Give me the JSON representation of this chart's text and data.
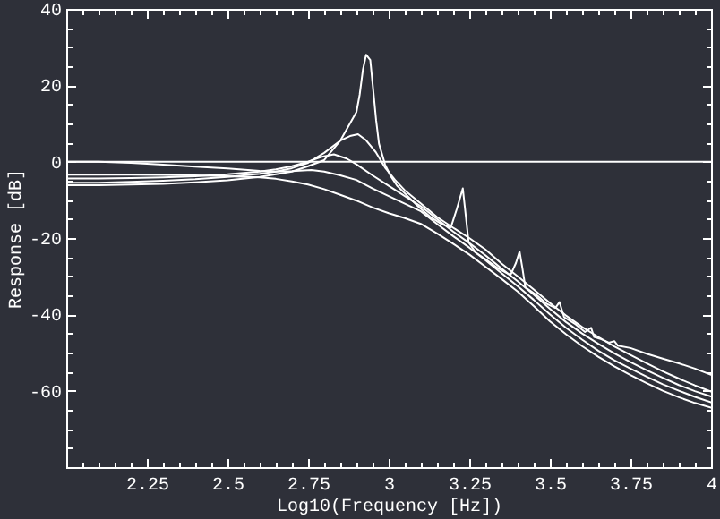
{
  "chart_data": {
    "type": "line",
    "xlabel": "Log10(Frequency [Hz])",
    "ylabel": "Response [dB]",
    "xlim": [
      2,
      4
    ],
    "ylim": [
      -80,
      40
    ],
    "xticks": [
      {
        "value": 2,
        "label": null
      },
      {
        "value": 2.05,
        "label": null
      },
      {
        "value": 2.1,
        "label": null
      },
      {
        "value": 2.15,
        "label": null
      },
      {
        "value": 2.2,
        "label": null
      },
      2.25,
      {
        "value": 2.3,
        "label": null
      },
      {
        "value": 2.35,
        "label": null
      },
      {
        "value": 2.4,
        "label": null
      },
      {
        "value": 2.45,
        "label": null
      },
      2.5,
      {
        "value": 2.55,
        "label": null
      },
      {
        "value": 2.6,
        "label": null
      },
      {
        "value": 2.65,
        "label": null
      },
      {
        "value": 2.7,
        "label": null
      },
      2.75,
      {
        "value": 2.8,
        "label": null
      },
      {
        "value": 2.85,
        "label": null
      },
      {
        "value": 2.9,
        "label": null
      },
      {
        "value": 2.95,
        "label": null
      },
      3,
      {
        "value": 3.05,
        "label": null
      },
      {
        "value": 3.1,
        "label": null
      },
      {
        "value": 3.15,
        "label": null
      },
      {
        "value": 3.2,
        "label": null
      },
      3.25,
      {
        "value": 3.3,
        "label": null
      },
      {
        "value": 3.35,
        "label": null
      },
      {
        "value": 3.4,
        "label": null
      },
      {
        "value": 3.45,
        "label": null
      },
      3.5,
      {
        "value": 3.55,
        "label": null
      },
      {
        "value": 3.6,
        "label": null
      },
      {
        "value": 3.65,
        "label": null
      },
      {
        "value": 3.7,
        "label": null
      },
      3.75,
      {
        "value": 3.8,
        "label": null
      },
      {
        "value": 3.85,
        "label": null
      },
      {
        "value": 3.9,
        "label": null
      },
      {
        "value": 3.95,
        "label": null
      },
      4
    ],
    "yticks": [
      {
        "value": -80,
        "label": null
      },
      {
        "value": -75,
        "label": null
      },
      {
        "value": -70,
        "label": null
      },
      {
        "value": -65,
        "label": null
      },
      -60,
      {
        "value": -55,
        "label": null
      },
      {
        "value": -50,
        "label": null
      },
      {
        "value": -45,
        "label": null
      },
      -40,
      {
        "value": -35,
        "label": null
      },
      {
        "value": -30,
        "label": null
      },
      {
        "value": -25,
        "label": null
      },
      -20,
      {
        "value": -15,
        "label": null
      },
      {
        "value": -10,
        "label": null
      },
      {
        "value": -5,
        "label": null
      },
      0,
      {
        "value": 5,
        "label": null
      },
      {
        "value": 10,
        "label": null
      },
      {
        "value": 15,
        "label": null
      },
      20,
      {
        "value": 25,
        "label": null
      },
      {
        "value": 30,
        "label": null
      },
      {
        "value": 35,
        "label": null
      },
      40
    ],
    "ref_lines": [
      {
        "axis": "y",
        "value": 0,
        "color": "#ffffff"
      }
    ],
    "series": [
      {
        "color": "#ffffff",
        "x": [
          2,
          2.1,
          2.2,
          2.3,
          2.4,
          2.5,
          2.6,
          2.65,
          2.7,
          2.75,
          2.8,
          2.85,
          2.88,
          2.9,
          2.91,
          2.92,
          2.93,
          2.943,
          2.952,
          2.961,
          2.97,
          2.989,
          3.007,
          3.026,
          3.054,
          3.091,
          3.128,
          3.165,
          3.193,
          3.211,
          3.23,
          3.239,
          3.248,
          3.27,
          3.3,
          3.34,
          3.378,
          3.395,
          3.406,
          3.415,
          3.424,
          3.46,
          3.49,
          3.517,
          3.53,
          3.544,
          3.58,
          3.609,
          3.628,
          3.637,
          3.66,
          3.683,
          3.7,
          3.711,
          3.75,
          3.8,
          3.85,
          3.9,
          3.95,
          4
        ],
        "values": [
          -6.2,
          -6.2,
          -6,
          -5.8,
          -5.4,
          -4.9,
          -4,
          -3.3,
          -2.6,
          -1.2,
          0.4,
          5.5,
          10,
          13,
          17.5,
          24,
          28,
          26.6,
          18.8,
          10.9,
          4.7,
          -0.8,
          -3.9,
          -6.3,
          -8.6,
          -11.7,
          -14.4,
          -16.4,
          -17.2,
          -12.5,
          -7,
          -14,
          -21.1,
          -23.8,
          -25.5,
          -28,
          -29.7,
          -26.5,
          -23.5,
          -28,
          -32.9,
          -35,
          -37.2,
          -38.3,
          -36.8,
          -40.7,
          -42.6,
          -44.6,
          -43.5,
          -45.9,
          -46.5,
          -47.4,
          -47,
          -48.2,
          -48.8,
          -50.3,
          -51.6,
          -52.8,
          -54.2,
          -55.8
        ]
      },
      {
        "color": "#ffffff",
        "x": [
          2,
          2.1,
          2.2,
          2.3,
          2.4,
          2.5,
          2.6,
          2.65,
          2.7,
          2.75,
          2.8,
          2.85,
          2.88,
          2.905,
          2.93,
          2.96,
          2.99,
          3.02,
          3.05,
          3.1,
          3.15,
          3.2,
          3.25,
          3.3,
          3.35,
          3.4,
          3.45,
          3.5,
          3.55,
          3.6,
          3.65,
          3.7,
          3.75,
          3.8,
          3.85,
          3.9,
          3.95,
          4
        ],
        "values": [
          -5.5,
          -5.5,
          -5.3,
          -5,
          -4.6,
          -4,
          -3.2,
          -2.6,
          -1.7,
          -0.3,
          2.3,
          5.5,
          6.7,
          7.2,
          5.6,
          2.5,
          -1.7,
          -4.8,
          -7.5,
          -11,
          -14.5,
          -17.3,
          -20,
          -23,
          -26.7,
          -30,
          -33.5,
          -37,
          -40.3,
          -43.3,
          -45.9,
          -48.4,
          -50.6,
          -52.8,
          -54.9,
          -56.8,
          -58.6,
          -60.2
        ]
      },
      {
        "color": "#ffffff",
        "x": [
          2,
          2.1,
          2.2,
          2.3,
          2.4,
          2.5,
          2.6,
          2.65,
          2.7,
          2.75,
          2.79,
          2.83,
          2.87,
          2.9,
          2.95,
          3,
          3.05,
          3.1,
          3.15,
          3.2,
          3.25,
          3.3,
          3.35,
          3.4,
          3.45,
          3.5,
          3.55,
          3.6,
          3.65,
          3.7,
          3.75,
          3.8,
          3.85,
          3.9,
          3.95,
          4
        ],
        "values": [
          -4.4,
          -4.4,
          -4.3,
          -4.1,
          -3.8,
          -3.3,
          -2.6,
          -2,
          -1.2,
          0,
          1.2,
          1.9,
          0.8,
          -0.7,
          -3.6,
          -6.3,
          -9,
          -11.7,
          -15,
          -18.3,
          -21.3,
          -24.5,
          -28,
          -31.3,
          -34.8,
          -38.5,
          -42,
          -45,
          -47.7,
          -50.2,
          -52.5,
          -54.6,
          -56.6,
          -58.5,
          -60.1,
          -61.5
        ]
      },
      {
        "color": "#ffffff",
        "x": [
          2,
          2.1,
          2.2,
          2.3,
          2.4,
          2.5,
          2.6,
          2.65,
          2.7,
          2.76,
          2.8,
          2.85,
          2.9,
          2.95,
          3,
          3.05,
          3.1,
          3.15,
          3.2,
          3.25,
          3.3,
          3.35,
          3.4,
          3.45,
          3.5,
          3.55,
          3.6,
          3.65,
          3.7,
          3.75,
          3.8,
          3.85,
          3.9,
          3.95,
          4
        ],
        "values": [
          0,
          0,
          -0.3,
          -0.8,
          -1.3,
          -1.8,
          -2.4,
          -2.6,
          -2.5,
          -2.2,
          -2.6,
          -3.6,
          -4.8,
          -7,
          -9,
          -11,
          -13,
          -16.3,
          -19.5,
          -22.5,
          -25.8,
          -29.2,
          -32.6,
          -36.2,
          -40,
          -43.5,
          -46.6,
          -49.5,
          -52,
          -54.2,
          -56.3,
          -58.3,
          -60,
          -61.6,
          -63
        ]
      },
      {
        "color": "#ffffff",
        "x": [
          2,
          2.1,
          2.2,
          2.3,
          2.4,
          2.5,
          2.6,
          2.65,
          2.7,
          2.75,
          2.8,
          2.85,
          2.9,
          2.95,
          3,
          3.05,
          3.1,
          3.15,
          3.2,
          3.25,
          3.3,
          3.35,
          3.4,
          3.45,
          3.5,
          3.55,
          3.6,
          3.65,
          3.7,
          3.75,
          3.8,
          3.85,
          3.9,
          3.95,
          4
        ],
        "values": [
          -3.4,
          -3.4,
          -3.4,
          -3.5,
          -3.6,
          -3.8,
          -4.1,
          -4.5,
          -5.2,
          -6,
          -7.2,
          -8.7,
          -10.2,
          -12,
          -13.5,
          -14.8,
          -16.3,
          -18.8,
          -21.5,
          -24.3,
          -27.5,
          -30.7,
          -34,
          -37.8,
          -41.8,
          -45.2,
          -48.3,
          -51.1,
          -53.6,
          -55.9,
          -58,
          -60,
          -61.7,
          -63.2,
          -64.4
        ]
      }
    ]
  }
}
